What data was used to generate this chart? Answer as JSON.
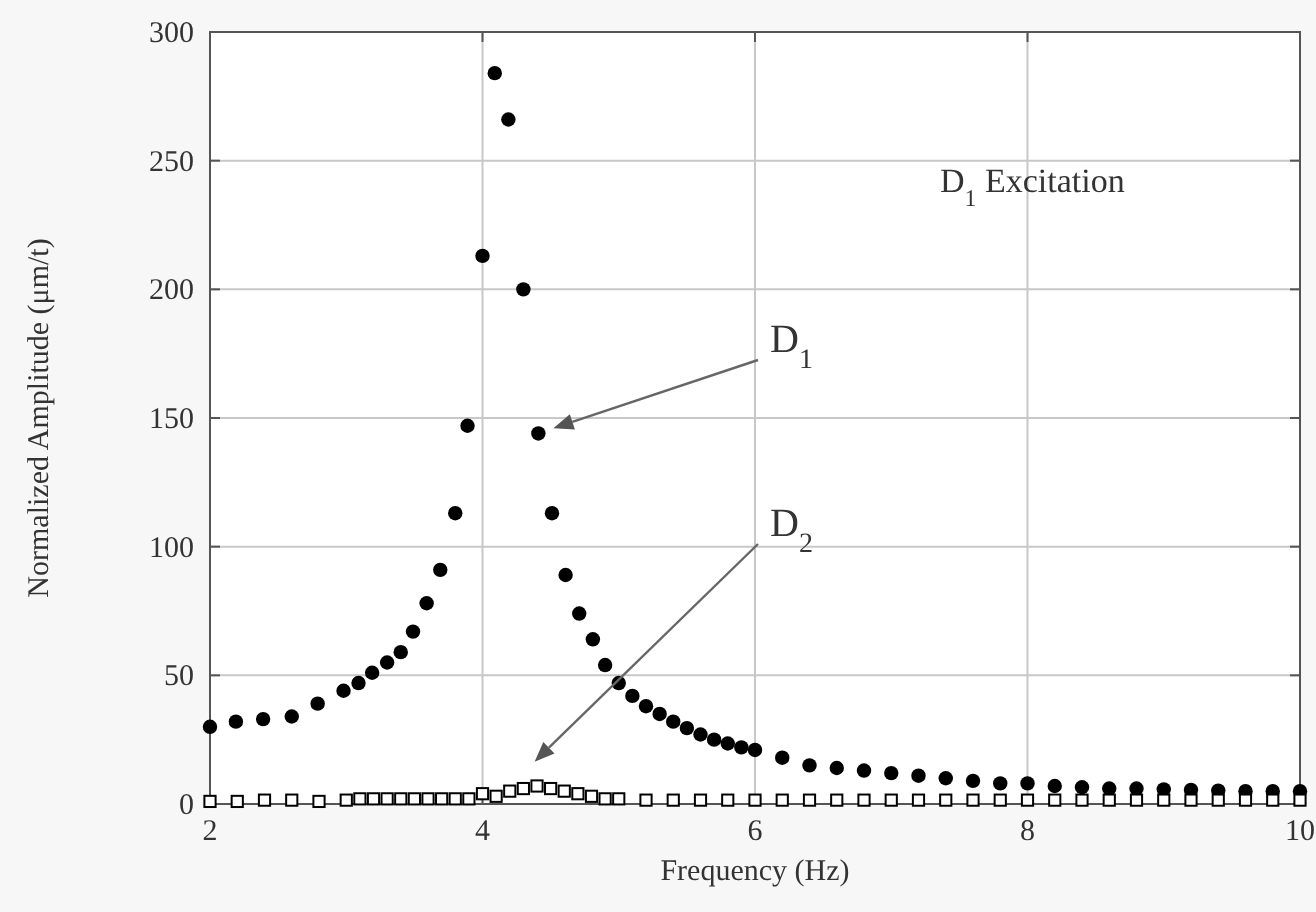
{
  "chart_data": {
    "type": "scatter",
    "xlabel": "Frequency (Hz)",
    "ylabel": "Normalized Amplitude (μm/t)",
    "xlim": [
      2,
      10
    ],
    "xticks": [
      2,
      4,
      6,
      8,
      10
    ],
    "ylim": [
      0,
      300
    ],
    "yticks": [
      0,
      50,
      100,
      150,
      200,
      250,
      300
    ],
    "grid": true,
    "annotations": [
      "D$_{1}$",
      "D$_{2}$",
      "D$_{1}$ Excitation"
    ],
    "series": [
      {
        "color": "#000000",
        "marker": "circle",
        "x": [
          2.0,
          2.19,
          2.39,
          2.6,
          2.79,
          2.98,
          3.09,
          3.19,
          3.3,
          3.4,
          3.49,
          3.59,
          3.69,
          3.8,
          3.89,
          4.0,
          4.09,
          4.19,
          4.3,
          4.41,
          4.51,
          4.61,
          4.71,
          4.81,
          4.9,
          5.0,
          5.1,
          5.2,
          5.3,
          5.4,
          5.5,
          5.6,
          5.7,
          5.8,
          5.9,
          6.0,
          6.2,
          6.4,
          6.6,
          6.8,
          7.0,
          7.2,
          7.4,
          7.6,
          7.8,
          8.0,
          8.2,
          8.4,
          8.6,
          8.8,
          9.0,
          9.2,
          9.4,
          9.6,
          9.8,
          10.0
        ],
        "values": [
          30,
          32,
          33,
          34,
          39,
          44,
          47,
          51,
          55,
          59,
          67,
          78,
          91,
          113,
          147,
          213,
          284,
          266,
          200,
          144,
          113,
          89,
          74,
          64,
          54,
          47,
          42,
          38,
          35,
          32,
          29.5,
          27,
          25,
          23.5,
          22,
          21,
          18,
          15,
          14,
          13,
          12,
          11,
          10,
          9,
          8,
          8,
          7,
          6.5,
          6,
          6,
          5.7,
          5.5,
          5.2,
          5,
          5,
          5
        ]
      },
      {
        "color": "#000000",
        "marker": "square",
        "x": [
          2.0,
          2.2,
          2.4,
          2.6,
          2.8,
          3.0,
          3.1,
          3.2,
          3.3,
          3.4,
          3.5,
          3.6,
          3.7,
          3.8,
          3.9,
          4.0,
          4.1,
          4.2,
          4.3,
          4.4,
          4.5,
          4.6,
          4.7,
          4.8,
          4.9,
          5.0,
          5.2,
          5.4,
          5.6,
          5.8,
          6.0,
          6.2,
          6.4,
          6.6,
          6.8,
          7.0,
          7.2,
          7.4,
          7.6,
          7.8,
          8.0,
          8.2,
          8.4,
          8.6,
          8.8,
          9.0,
          9.2,
          9.4,
          9.6,
          9.8,
          10.0
        ],
        "values": [
          1,
          1,
          1.5,
          1.5,
          1,
          1.5,
          2,
          2,
          2,
          2,
          2,
          2,
          2,
          2,
          2,
          4,
          3,
          5,
          6,
          7,
          6,
          5,
          4,
          3,
          2,
          2,
          1.5,
          1.5,
          1.5,
          1.5,
          1.5,
          1.5,
          1.5,
          1.5,
          1.5,
          1.5,
          1.5,
          1.5,
          1.5,
          1.5,
          1.5,
          1.5,
          1.5,
          1.5,
          1.5,
          1.5,
          1.5,
          1.5,
          1.5,
          1.5,
          1.5
        ]
      }
    ]
  }
}
